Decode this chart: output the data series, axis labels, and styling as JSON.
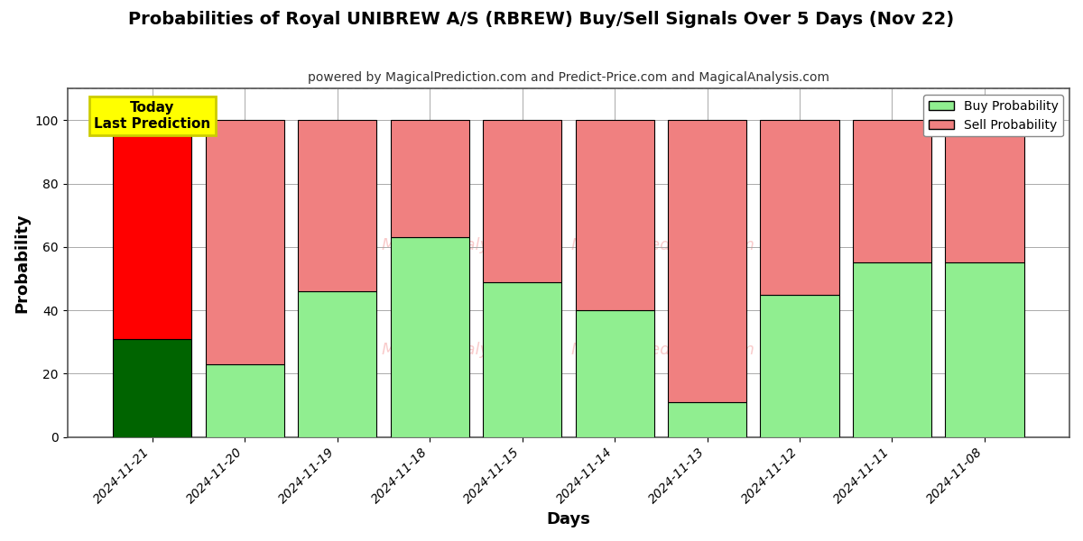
{
  "title": "Probabilities of Royal UNIBREW A/S (RBREW) Buy/Sell Signals Over 5 Days (Nov 22)",
  "subtitle": "powered by MagicalPrediction.com and Predict-Price.com and MagicalAnalysis.com",
  "xlabel": "Days",
  "ylabel": "Probability",
  "dates": [
    "2024-11-21",
    "2024-11-20",
    "2024-11-19",
    "2024-11-18",
    "2024-11-15",
    "2024-11-14",
    "2024-11-13",
    "2024-11-12",
    "2024-11-11",
    "2024-11-08"
  ],
  "buy_values": [
    31,
    23,
    46,
    63,
    49,
    40,
    11,
    45,
    55,
    55
  ],
  "sell_values": [
    69,
    77,
    54,
    37,
    51,
    60,
    89,
    55,
    45,
    45
  ],
  "buy_color_today": "#006400",
  "sell_color_today": "#ff0000",
  "buy_color_rest": "#90ee90",
  "sell_color_rest": "#f08080",
  "bar_edge_color": "#000000",
  "bar_width": 0.85,
  "ylim": [
    0,
    110
  ],
  "yticks": [
    0,
    20,
    40,
    60,
    80,
    100
  ],
  "dashed_line_y": 110,
  "today_box_color": "#ffff00",
  "today_box_edge_color": "#cccc00",
  "today_label": "Today\nLast Prediction",
  "legend_buy_label": "Buy Probability",
  "legend_sell_label": "Sell Probability",
  "background_color": "#ffffff",
  "grid_color": "#aaaaaa",
  "watermark_color": "#f08080",
  "watermark_alpha": 0.4,
  "watermark_text": "MagicalAnalysis.com    MagicalPrediction.com"
}
